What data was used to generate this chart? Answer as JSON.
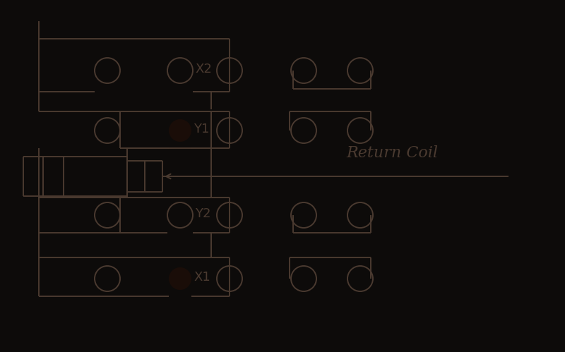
{
  "bg_color": "#0d0b0a",
  "line_color": "#4a3a30",
  "circle_color": "#4a3a30",
  "filled_circle_color": "#1a0d08",
  "text_color": "#4a3a30",
  "return_coil_label": "Return Coil",
  "label_X2": "X2",
  "label_Y1": "Y1",
  "label_Y2": "Y2",
  "label_X1": "X1",
  "lw": 1.4
}
